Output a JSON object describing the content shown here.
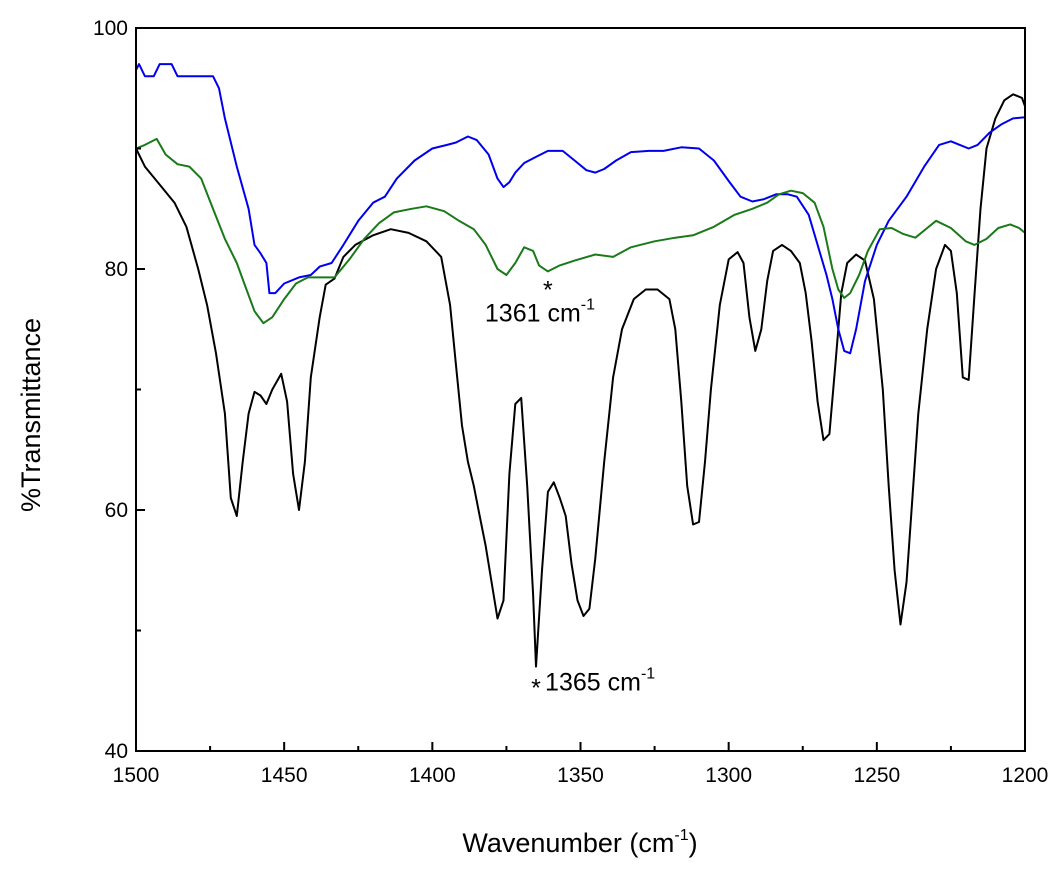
{
  "chart_data": {
    "type": "line",
    "title": "",
    "xlabel": "Wavenumber (cm",
    "xlabel_sup": "-1",
    "xlabel_close": ")",
    "ylabel": "%Transmittance",
    "xlim": [
      1500,
      1200
    ],
    "ylim": [
      40,
      100
    ],
    "x_reversed": true,
    "grid": false,
    "x_ticks": [
      "1500",
      "1450",
      "1400",
      "1350",
      "1300",
      "1250",
      "1200"
    ],
    "x_tick_values": [
      1500,
      1450,
      1400,
      1350,
      1300,
      1250,
      1200
    ],
    "y_ticks": [
      "40",
      "60",
      "80",
      "100"
    ],
    "y_tick_values": [
      40,
      60,
      80,
      100
    ],
    "series": [
      {
        "color": "#000000",
        "points": [
          [
            1500,
            90
          ],
          [
            1497,
            88.5
          ],
          [
            1492,
            87
          ],
          [
            1487,
            85.5
          ],
          [
            1483,
            83.5
          ],
          [
            1479,
            80
          ],
          [
            1476,
            77
          ],
          [
            1473,
            73
          ],
          [
            1470,
            68
          ],
          [
            1468,
            61
          ],
          [
            1466,
            59.5
          ],
          [
            1464,
            64
          ],
          [
            1462,
            68
          ],
          [
            1460,
            69.8
          ],
          [
            1458,
            69.5
          ],
          [
            1456,
            68.8
          ],
          [
            1454,
            70
          ],
          [
            1451,
            71.3
          ],
          [
            1449,
            69
          ],
          [
            1447,
            63
          ],
          [
            1445,
            60
          ],
          [
            1443,
            64
          ],
          [
            1441,
            71
          ],
          [
            1438,
            76
          ],
          [
            1436,
            78.7
          ],
          [
            1433,
            79.2
          ],
          [
            1430,
            81
          ],
          [
            1426,
            82
          ],
          [
            1420,
            82.8
          ],
          [
            1414,
            83.3
          ],
          [
            1408,
            83
          ],
          [
            1402,
            82.3
          ],
          [
            1397,
            81
          ],
          [
            1394,
            77
          ],
          [
            1392,
            72
          ],
          [
            1390,
            67
          ],
          [
            1388,
            64
          ],
          [
            1386,
            62
          ],
          [
            1384,
            59.5
          ],
          [
            1382,
            57
          ],
          [
            1380,
            54
          ],
          [
            1378,
            51
          ],
          [
            1376,
            52.5
          ],
          [
            1374,
            63
          ],
          [
            1372,
            68.8
          ],
          [
            1370,
            69.3
          ],
          [
            1368,
            62
          ],
          [
            1366,
            53
          ],
          [
            1365,
            47
          ],
          [
            1363,
            55
          ],
          [
            1361,
            61.5
          ],
          [
            1359,
            62.3
          ],
          [
            1357,
            61
          ],
          [
            1355,
            59.5
          ],
          [
            1353,
            55.5
          ],
          [
            1351,
            52.5
          ],
          [
            1349,
            51.2
          ],
          [
            1347,
            51.8
          ],
          [
            1345,
            56
          ],
          [
            1342,
            64
          ],
          [
            1339,
            71
          ],
          [
            1336,
            75
          ],
          [
            1332,
            77.5
          ],
          [
            1328,
            78.3
          ],
          [
            1324,
            78.3
          ],
          [
            1320,
            77.5
          ],
          [
            1318,
            75
          ],
          [
            1316,
            69
          ],
          [
            1314,
            62
          ],
          [
            1312,
            58.8
          ],
          [
            1310,
            59
          ],
          [
            1308,
            64
          ],
          [
            1306,
            70
          ],
          [
            1303,
            77
          ],
          [
            1300,
            80.8
          ],
          [
            1297,
            81.4
          ],
          [
            1295,
            80.5
          ],
          [
            1293,
            76
          ],
          [
            1291,
            73.2
          ],
          [
            1289,
            75
          ],
          [
            1287,
            79
          ],
          [
            1285,
            81.5
          ],
          [
            1282,
            82
          ],
          [
            1279,
            81.5
          ],
          [
            1276,
            80.5
          ],
          [
            1274,
            78
          ],
          [
            1272,
            74
          ],
          [
            1270,
            69
          ],
          [
            1268,
            65.8
          ],
          [
            1266,
            66.3
          ],
          [
            1264,
            72
          ],
          [
            1262,
            78
          ],
          [
            1260,
            80.5
          ],
          [
            1257,
            81.2
          ],
          [
            1254,
            80.7
          ],
          [
            1251,
            77.5
          ],
          [
            1248,
            70
          ],
          [
            1246,
            62
          ],
          [
            1244,
            55
          ],
          [
            1242,
            50.5
          ],
          [
            1240,
            54
          ],
          [
            1238,
            61
          ],
          [
            1236,
            68
          ],
          [
            1233,
            75
          ],
          [
            1230,
            80
          ],
          [
            1227,
            82
          ],
          [
            1225,
            81.5
          ],
          [
            1223,
            78
          ],
          [
            1221,
            71
          ],
          [
            1219,
            70.8
          ],
          [
            1217,
            78
          ],
          [
            1215,
            85
          ],
          [
            1213,
            90
          ],
          [
            1210,
            92.5
          ],
          [
            1207,
            94
          ],
          [
            1204,
            94.5
          ],
          [
            1201,
            94.2
          ],
          [
            1200,
            93.5
          ]
        ]
      },
      {
        "color": "#0000ee",
        "points": [
          [
            1500,
            96.5
          ],
          [
            1499,
            97
          ],
          [
            1497,
            96
          ],
          [
            1494,
            96
          ],
          [
            1492,
            97
          ],
          [
            1488,
            97
          ],
          [
            1486,
            96
          ],
          [
            1482,
            96
          ],
          [
            1478,
            96
          ],
          [
            1474,
            96
          ],
          [
            1472,
            95
          ],
          [
            1470,
            92.5
          ],
          [
            1466,
            88.5
          ],
          [
            1462,
            85
          ],
          [
            1460,
            82
          ],
          [
            1458,
            81.3
          ],
          [
            1456,
            80.5
          ],
          [
            1455,
            78
          ],
          [
            1453,
            78
          ],
          [
            1450,
            78.8
          ],
          [
            1445,
            79.3
          ],
          [
            1441,
            79.5
          ],
          [
            1438,
            80.2
          ],
          [
            1434,
            80.5
          ],
          [
            1430,
            82
          ],
          [
            1425,
            84
          ],
          [
            1420,
            85.5
          ],
          [
            1416,
            86
          ],
          [
            1412,
            87.5
          ],
          [
            1406,
            89
          ],
          [
            1400,
            90
          ],
          [
            1395,
            90.3
          ],
          [
            1392,
            90.5
          ],
          [
            1388,
            91
          ],
          [
            1385,
            90.7
          ],
          [
            1381,
            89.5
          ],
          [
            1378,
            87.5
          ],
          [
            1376,
            86.8
          ],
          [
            1374,
            87.2
          ],
          [
            1372,
            88
          ],
          [
            1369,
            88.8
          ],
          [
            1365,
            89.3
          ],
          [
            1361,
            89.8
          ],
          [
            1356,
            89.8
          ],
          [
            1352,
            89
          ],
          [
            1348,
            88.2
          ],
          [
            1345,
            88
          ],
          [
            1342,
            88.3
          ],
          [
            1338,
            89
          ],
          [
            1333,
            89.7
          ],
          [
            1327,
            89.8
          ],
          [
            1322,
            89.8
          ],
          [
            1316,
            90.1
          ],
          [
            1310,
            90
          ],
          [
            1305,
            89
          ],
          [
            1300,
            87.3
          ],
          [
            1296,
            86
          ],
          [
            1292,
            85.6
          ],
          [
            1288,
            85.8
          ],
          [
            1284,
            86.2
          ],
          [
            1280,
            86.2
          ],
          [
            1277,
            86
          ],
          [
            1273,
            84.5
          ],
          [
            1270,
            82
          ],
          [
            1267,
            79.5
          ],
          [
            1265,
            77.5
          ],
          [
            1263,
            75
          ],
          [
            1261,
            73.2
          ],
          [
            1259,
            73
          ],
          [
            1257,
            75
          ],
          [
            1254,
            79
          ],
          [
            1250,
            82
          ],
          [
            1246,
            84
          ],
          [
            1240,
            86
          ],
          [
            1234,
            88.5
          ],
          [
            1229,
            90.3
          ],
          [
            1225,
            90.6
          ],
          [
            1222,
            90.3
          ],
          [
            1219,
            90
          ],
          [
            1216,
            90.3
          ],
          [
            1212,
            91.3
          ],
          [
            1208,
            92
          ],
          [
            1204,
            92.5
          ],
          [
            1200,
            92.6
          ]
        ]
      },
      {
        "color": "#1a7a1a",
        "points": [
          [
            1500,
            90
          ],
          [
            1497,
            90.3
          ],
          [
            1493,
            90.8
          ],
          [
            1490,
            89.5
          ],
          [
            1486,
            88.7
          ],
          [
            1482,
            88.5
          ],
          [
            1478,
            87.5
          ],
          [
            1474,
            85
          ],
          [
            1470,
            82.5
          ],
          [
            1466,
            80.5
          ],
          [
            1463,
            78.5
          ],
          [
            1460,
            76.5
          ],
          [
            1457,
            75.5
          ],
          [
            1454,
            76
          ],
          [
            1450,
            77.5
          ],
          [
            1446,
            78.8
          ],
          [
            1442,
            79.3
          ],
          [
            1438,
            79.3
          ],
          [
            1433,
            79.3
          ],
          [
            1428,
            80.8
          ],
          [
            1423,
            82.5
          ],
          [
            1418,
            83.8
          ],
          [
            1413,
            84.7
          ],
          [
            1407,
            85
          ],
          [
            1402,
            85.2
          ],
          [
            1396,
            84.8
          ],
          [
            1391,
            84
          ],
          [
            1386,
            83.3
          ],
          [
            1382,
            82
          ],
          [
            1378,
            80
          ],
          [
            1375,
            79.5
          ],
          [
            1372,
            80.5
          ],
          [
            1369,
            81.8
          ],
          [
            1366,
            81.5
          ],
          [
            1364,
            80.3
          ],
          [
            1361,
            79.8
          ],
          [
            1357,
            80.3
          ],
          [
            1352,
            80.7
          ],
          [
            1345,
            81.2
          ],
          [
            1339,
            81
          ],
          [
            1333,
            81.8
          ],
          [
            1325,
            82.3
          ],
          [
            1318,
            82.6
          ],
          [
            1312,
            82.8
          ],
          [
            1305,
            83.5
          ],
          [
            1298,
            84.5
          ],
          [
            1292,
            85
          ],
          [
            1287,
            85.5
          ],
          [
            1283,
            86.2
          ],
          [
            1279,
            86.5
          ],
          [
            1275,
            86.3
          ],
          [
            1271,
            85.5
          ],
          [
            1268,
            83.5
          ],
          [
            1265,
            80
          ],
          [
            1263,
            78.3
          ],
          [
            1261,
            77.6
          ],
          [
            1259,
            78
          ],
          [
            1256,
            79.5
          ],
          [
            1253,
            81.5
          ],
          [
            1249,
            83.3
          ],
          [
            1245,
            83.4
          ],
          [
            1241,
            82.9
          ],
          [
            1237,
            82.6
          ],
          [
            1233,
            83.4
          ],
          [
            1230,
            84
          ],
          [
            1225,
            83.4
          ],
          [
            1220,
            82.3
          ],
          [
            1217,
            82
          ],
          [
            1213,
            82.5
          ],
          [
            1209,
            83.4
          ],
          [
            1205,
            83.7
          ],
          [
            1202,
            83.4
          ],
          [
            1200,
            83
          ]
        ]
      }
    ],
    "annotations": [
      {
        "marker": "*",
        "text": "1361 cm",
        "sup": "-1",
        "x": 1361,
        "y": 79.8
      },
      {
        "marker": "*",
        "text": "1365 cm",
        "sup": "-1",
        "x": 1365,
        "y": 47
      }
    ]
  }
}
